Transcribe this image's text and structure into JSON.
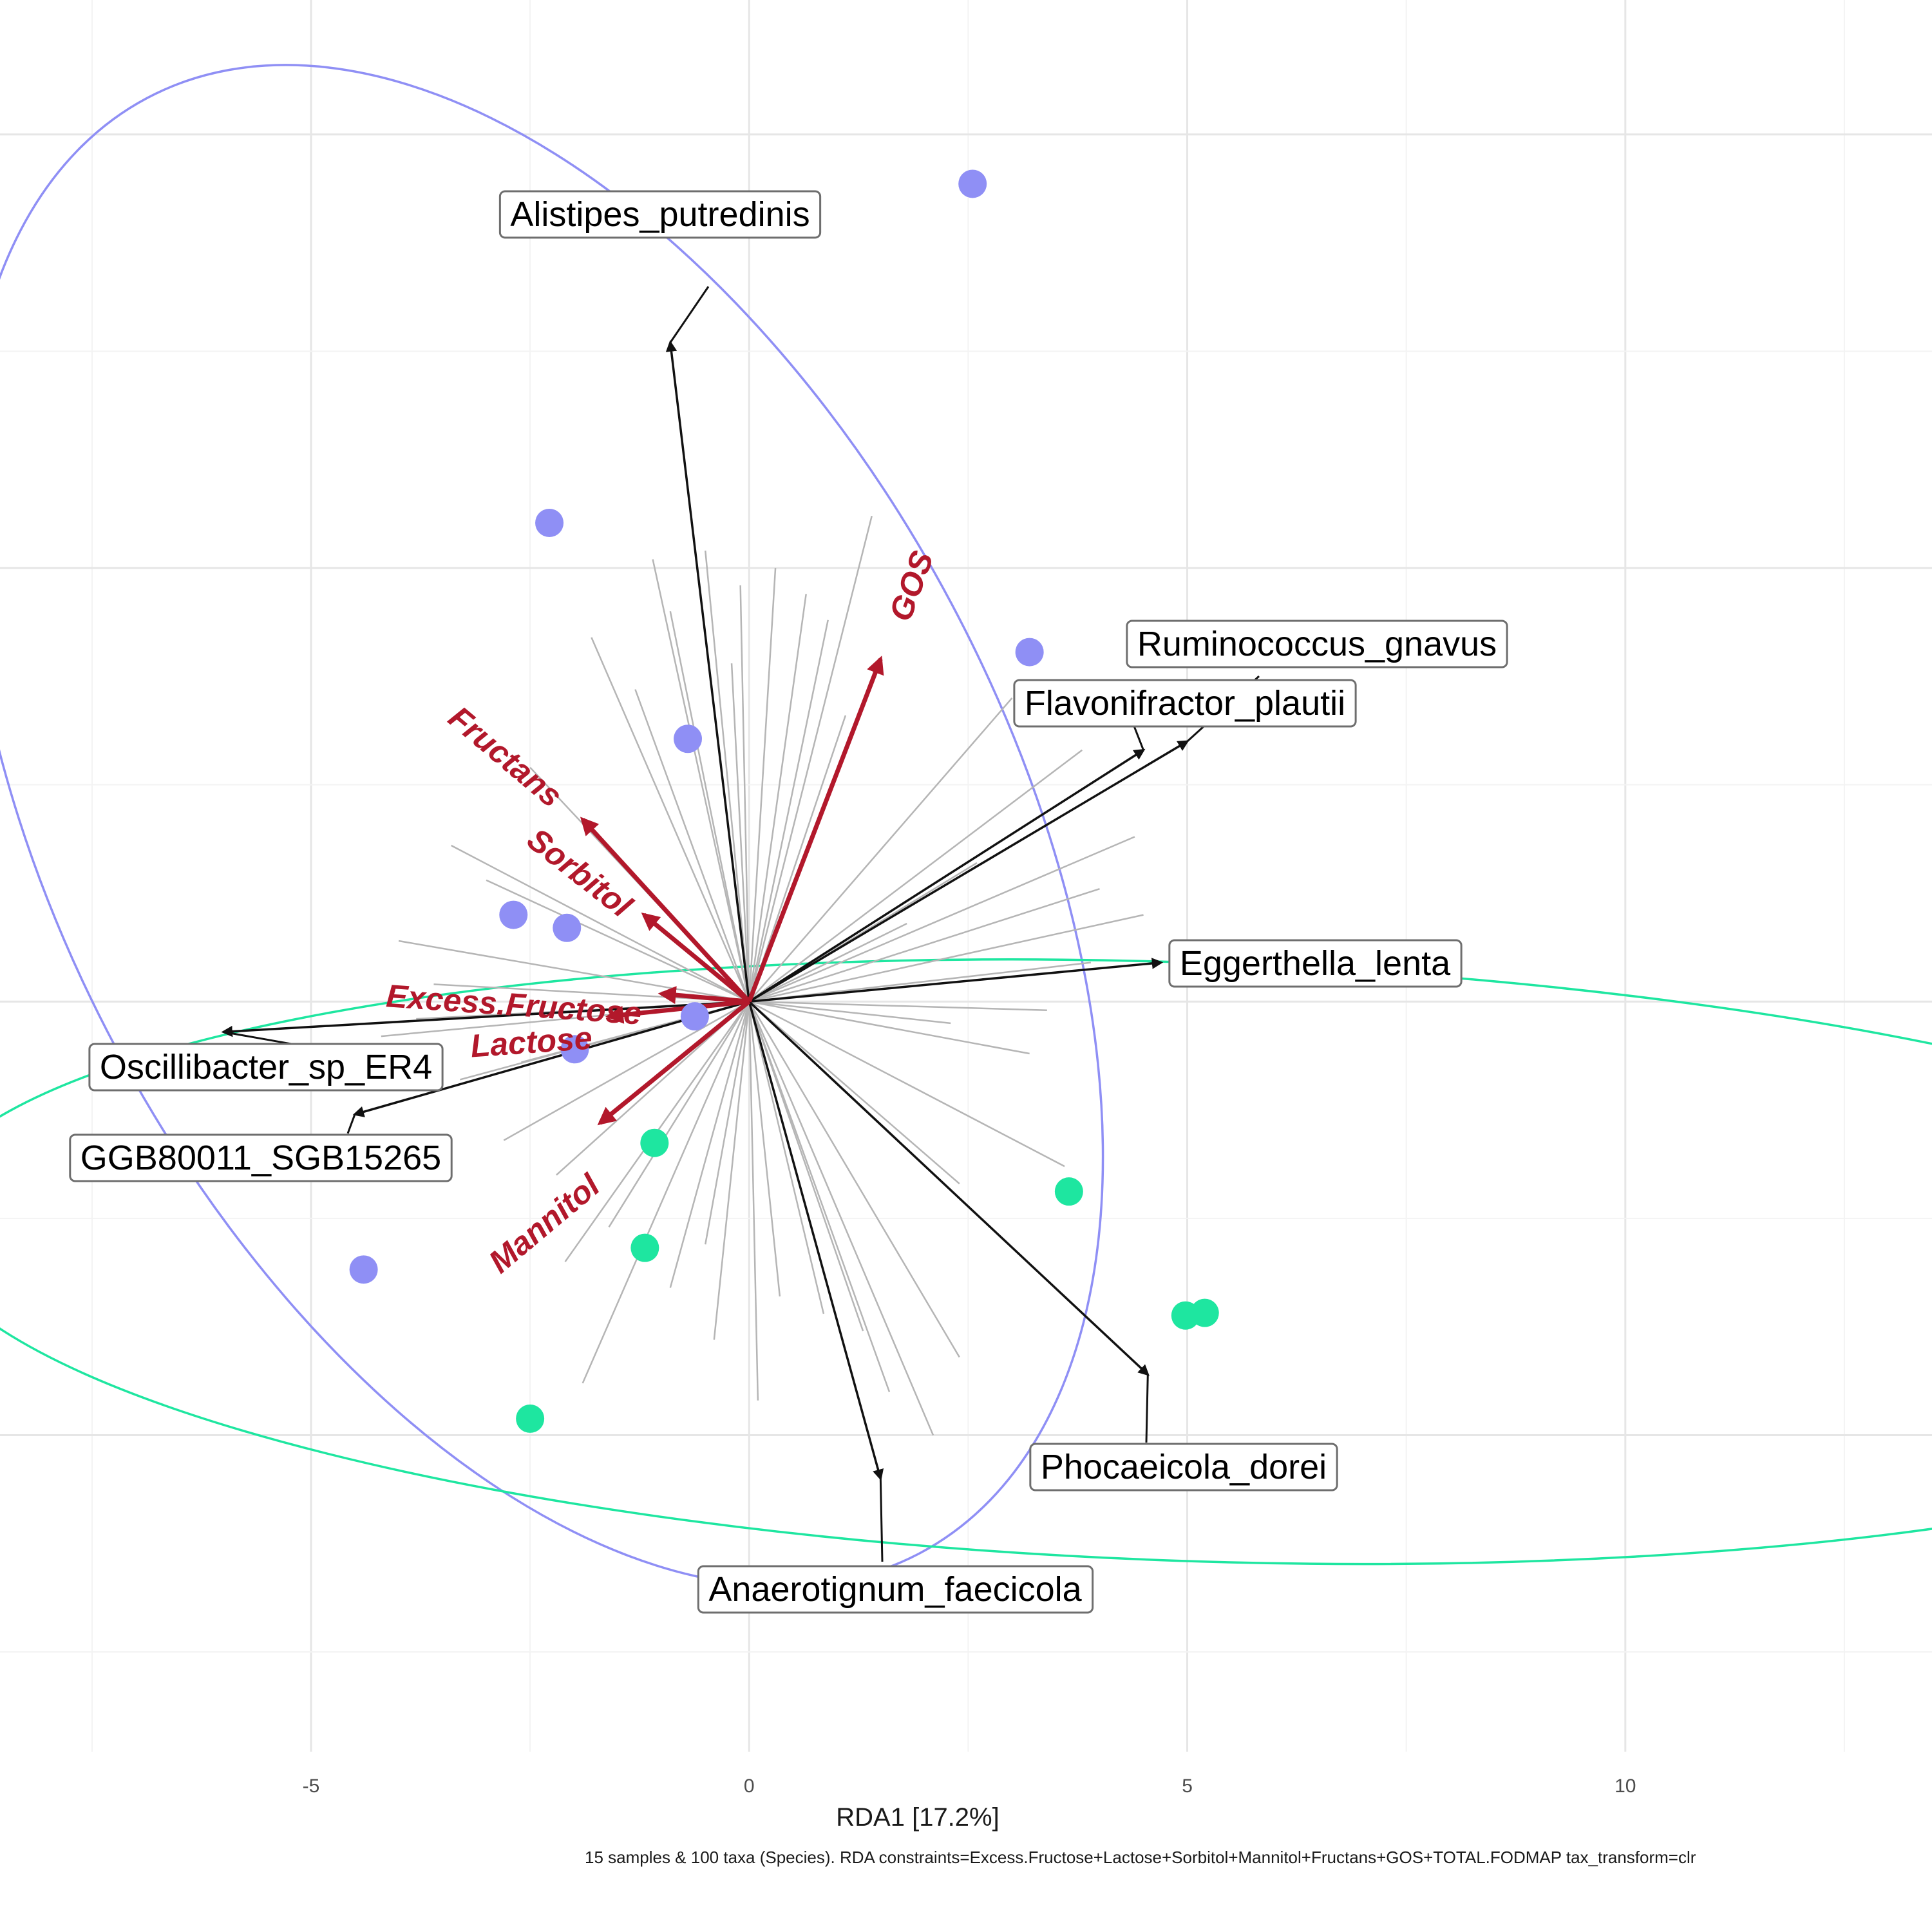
{
  "chart_data": {
    "type": "scatter",
    "xlabel": "RDA1 [17.2%]",
    "caption": "15 samples & 100 taxa (Species). RDA constraints=Excess.Fructose+Lactose+Sorbitol+Mannitol+Fructans+GOS+TOTAL.FODMAP tax_transform=clr",
    "x_ticks": [
      -5,
      0,
      5,
      10
    ],
    "xlim": [
      -8.55,
      13.5
    ],
    "ylim": [
      -8.65,
      11.55
    ],
    "grid": true,
    "colors": {
      "group_a": "#8f8ff5",
      "group_b": "#1ee6a0",
      "constraint": "#b2182b",
      "taxa_arrow": "#111111",
      "background_taxa": "#b5b5b5"
    },
    "origin": [
      0,
      0
    ],
    "series": [
      {
        "color": "#8f8ff5",
        "points": [
          [
            2.55,
            9.43
          ],
          [
            -2.28,
            5.52
          ],
          [
            3.2,
            4.03
          ],
          [
            -0.7,
            3.03
          ],
          [
            -2.69,
            1.0
          ],
          [
            -2.08,
            0.85
          ],
          [
            -0.62,
            -0.17
          ],
          [
            -1.99,
            -0.55
          ],
          [
            -4.4,
            -3.09
          ]
        ],
        "ellipse": {
          "center": [
            -2.46,
            2.03
          ],
          "rx": 5.4,
          "ry": 9.5,
          "rotation_deg": 28
        }
      },
      {
        "color": "#1ee6a0",
        "points": [
          [
            -1.08,
            -1.63
          ],
          [
            -1.19,
            -2.84
          ],
          [
            3.65,
            -2.19
          ],
          [
            4.98,
            -3.62
          ],
          [
            5.2,
            -3.59
          ],
          [
            -2.5,
            -4.81
          ]
        ],
        "ellipse": {
          "center": [
            5.0,
            -3.0
          ],
          "rx": 14.5,
          "ry": 3.45,
          "rotation_deg": -2
        }
      }
    ],
    "constraint_arrows": [
      {
        "label": "GOS",
        "end": [
          1.5,
          3.95
        ]
      },
      {
        "label": "Fructans",
        "end": [
          -1.9,
          2.1
        ]
      },
      {
        "label": "Sorbitol",
        "end": [
          -1.2,
          1.0
        ]
      },
      {
        "label": "Excess.Fructose",
        "end": [
          -1.0,
          0.09
        ]
      },
      {
        "label": "Lactose",
        "end": [
          -1.6,
          -0.17
        ]
      },
      {
        "label": "Mannitol",
        "end": [
          -1.7,
          -1.4
        ]
      }
    ],
    "taxa_arrows": [
      {
        "label": "Alistipes_putredinis",
        "end": [
          -0.9,
          7.6
        ]
      },
      {
        "label": "Ruminococcus_gnavus",
        "end": [
          5.0,
          3.0
        ]
      },
      {
        "label": "Flavonifractor_plautii",
        "end": [
          4.5,
          2.9
        ]
      },
      {
        "label": "Eggerthella_lenta",
        "end": [
          4.7,
          0.45
        ]
      },
      {
        "label": "Oscillibacter_sp_ER4",
        "end": [
          -6.0,
          -0.35
        ]
      },
      {
        "label": "GGB80011_SGB15265",
        "end": [
          -4.5,
          -1.3
        ]
      },
      {
        "label": "Phocaeicola_dorei",
        "end": [
          4.55,
          -4.3
        ]
      },
      {
        "label": "Anaerotignum_faecicola",
        "end": [
          1.5,
          -5.5
        ]
      }
    ],
    "background_taxa_ends": [
      [
        -1.1,
        5.1
      ],
      [
        0.65,
        4.7
      ],
      [
        -1.8,
        4.2
      ],
      [
        -0.9,
        4.5
      ],
      [
        -1.3,
        3.6
      ],
      [
        0.3,
        5.0
      ],
      [
        1.4,
        5.6
      ],
      [
        -0.5,
        5.2
      ],
      [
        0.9,
        4.4
      ],
      [
        -0.2,
        3.9
      ],
      [
        -2.5,
        2.7
      ],
      [
        -3.4,
        1.8
      ],
      [
        -3.0,
        1.4
      ],
      [
        -4.0,
        0.7
      ],
      [
        -3.6,
        0.2
      ],
      [
        -4.2,
        -0.4
      ],
      [
        -3.3,
        -0.9
      ],
      [
        -2.8,
        -1.6
      ],
      [
        -2.2,
        -2.0
      ],
      [
        -1.6,
        -2.6
      ],
      [
        -0.9,
        -3.3
      ],
      [
        -0.4,
        -3.9
      ],
      [
        0.35,
        -3.4
      ],
      [
        0.85,
        -3.6
      ],
      [
        1.3,
        -3.8
      ],
      [
        2.1,
        -5.0
      ],
      [
        2.4,
        -4.1
      ],
      [
        1.6,
        -4.5
      ],
      [
        3.6,
        -1.9
      ],
      [
        2.4,
        -2.1
      ],
      [
        3.0,
        3.5
      ],
      [
        3.8,
        2.9
      ],
      [
        4.4,
        1.9
      ],
      [
        4.0,
        1.3
      ],
      [
        4.5,
        1.0
      ],
      [
        3.9,
        0.45
      ],
      [
        3.4,
        -0.1
      ],
      [
        2.3,
        -0.25
      ],
      [
        1.8,
        0.9
      ],
      [
        2.6,
        1.6
      ],
      [
        3.2,
        -0.6
      ],
      [
        -1.9,
        -4.4
      ],
      [
        -2.1,
        -3.0
      ],
      [
        -0.5,
        -2.8
      ],
      [
        -2.6,
        -0.7
      ],
      [
        -3.8,
        -0.2
      ],
      [
        0.1,
        -4.6
      ],
      [
        -0.1,
        4.8
      ],
      [
        1.1,
        3.3
      ]
    ]
  }
}
